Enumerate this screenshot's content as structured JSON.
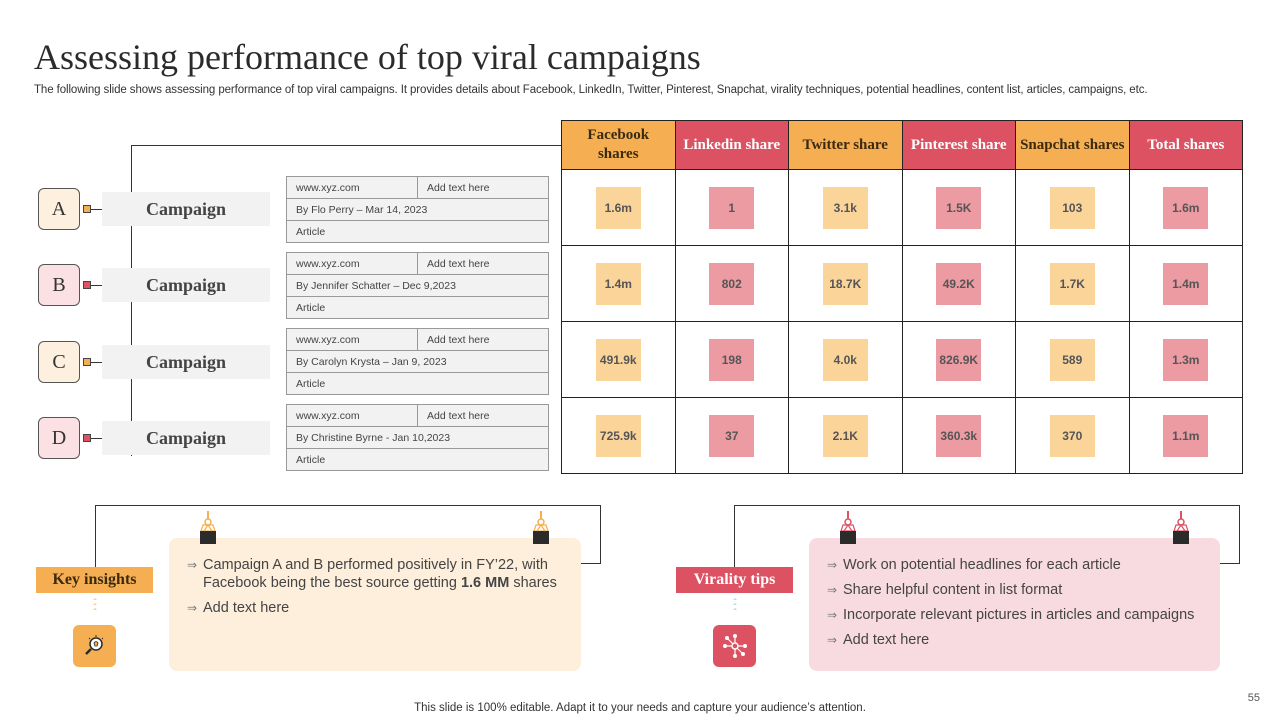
{
  "title": "Assessing performance of top viral campaigns",
  "subtitle": "The following slide shows assessing performance of top viral campaigns. It provides details about Facebook, LinkedIn, Twitter, Pinterest, Snapchat, virality techniques, potential headlines, content list, articles, campaigns, etc.",
  "campaigns": [
    {
      "letter": "A",
      "label": "Campaign",
      "url": "www.xyz.com",
      "add": "Add text here",
      "byline": "By Flo Perry – Mar 14, 2023",
      "type": "Article"
    },
    {
      "letter": "B",
      "label": "Campaign",
      "url": "www.xyz.com",
      "add": "Add text here",
      "byline": "By Jennifer Schatter – Dec 9,2023",
      "type": "Article"
    },
    {
      "letter": "C",
      "label": "Campaign",
      "url": "www.xyz.com",
      "add": "Add text here",
      "byline": "By Carolyn Krysta – Jan 9, 2023",
      "type": "Article"
    },
    {
      "letter": "D",
      "label": "Campaign",
      "url": "www.xyz.com",
      "add": "Add text here",
      "byline": "By Christine Byrne - Jan 10,2023",
      "type": "Article"
    }
  ],
  "table": {
    "headers": [
      "Facebook shares",
      "Linkedin share",
      "Twitter share",
      "Pinterest share",
      "Snapchat shares",
      "Total shares"
    ],
    "rows": [
      [
        "1.6m",
        "1",
        "3.1k",
        "1.5K",
        "103",
        "1.6m"
      ],
      [
        "1.4m",
        "802",
        "18.7K",
        "49.2K",
        "1.7K",
        "1.4m"
      ],
      [
        "491.9k",
        "198",
        "4.0k",
        "826.9K",
        "589",
        "1.3m"
      ],
      [
        "725.9k",
        "37",
        "2.1K",
        "360.3k",
        "370",
        "1.1m"
      ]
    ]
  },
  "key_insights": {
    "label": "Key insights",
    "item1_pre": "Campaign A and B performed positively in FY’22, with Facebook being the best source getting ",
    "item1_bold": "1.6 MM",
    "item1_post": " shares",
    "item2": "Add text here"
  },
  "virality_tips": {
    "label": "Virality tips",
    "items": [
      "Work on potential headlines for each article",
      "Share helpful content in list format",
      "Incorporate relevant pictures in articles and campaigns",
      "Add text here"
    ]
  },
  "colors": {
    "yellow": "#f5ae52",
    "red": "#dc5263",
    "light_yellow": "#fbd49a",
    "light_red": "#ec9ba3"
  },
  "icons": {
    "key_insights": "lightbulb-magnifier-icon",
    "virality_tips": "network-share-icon"
  },
  "footer": "This slide is 100% editable. Adapt it to your needs and capture your audience’s attention.",
  "page_number": "55"
}
